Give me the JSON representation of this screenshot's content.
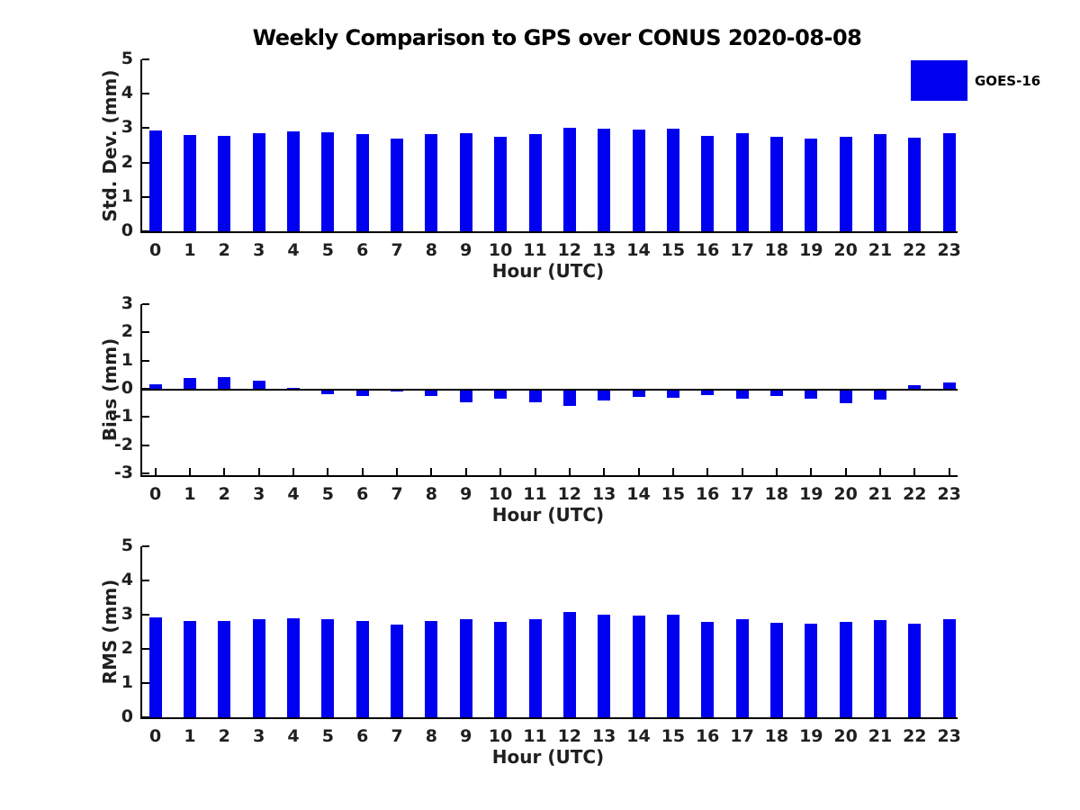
{
  "title": "Weekly Comparison to GPS over CONUS 2020-08-08",
  "legend": {
    "label": "GOES-16",
    "swatch_color": "#0000f0",
    "position": "top-right"
  },
  "colors": {
    "bar": "#0000f0",
    "axis": "#000000",
    "text": "#1f1f1f",
    "background": "#ffffff"
  },
  "chart_data": [
    {
      "type": "bar",
      "name": "std-dev",
      "ylabel": "Std. Dev. (mm)",
      "xlabel": "Hour (UTC)",
      "categories": [
        0,
        1,
        2,
        3,
        4,
        5,
        6,
        7,
        8,
        9,
        10,
        11,
        12,
        13,
        14,
        15,
        16,
        17,
        18,
        19,
        20,
        21,
        22,
        23
      ],
      "series": [
        {
          "name": "GOES-16",
          "values": [
            2.93,
            2.81,
            2.78,
            2.86,
            2.9,
            2.88,
            2.82,
            2.71,
            2.82,
            2.85,
            2.76,
            2.84,
            3.02,
            2.99,
            2.97,
            2.99,
            2.78,
            2.85,
            2.76,
            2.71,
            2.74,
            2.82,
            2.73,
            2.85
          ]
        }
      ],
      "ylim": [
        0,
        5
      ],
      "yticks": [
        0,
        1,
        2,
        3,
        4,
        5
      ],
      "xlim": [
        -0.45,
        23.2
      ],
      "grid": false,
      "legend_position": "top-right"
    },
    {
      "type": "bar",
      "name": "bias",
      "ylabel": "Bias (mm)",
      "xlabel": "Hour (UTC)",
      "categories": [
        0,
        1,
        2,
        3,
        4,
        5,
        6,
        7,
        8,
        9,
        10,
        11,
        12,
        13,
        14,
        15,
        16,
        17,
        18,
        19,
        20,
        21,
        22,
        23
      ],
      "series": [
        {
          "name": "GOES-16",
          "values": [
            0.16,
            0.37,
            0.42,
            0.28,
            0.02,
            -0.13,
            -0.18,
            -0.03,
            -0.18,
            -0.42,
            -0.3,
            -0.4,
            -0.55,
            -0.35,
            -0.21,
            -0.24,
            -0.16,
            -0.3,
            -0.19,
            -0.3,
            -0.45,
            -0.33,
            0.12,
            0.21
          ]
        }
      ],
      "ylim": [
        -3,
        3
      ],
      "yticks": [
        -3,
        -2,
        -1,
        0,
        1,
        2,
        3
      ],
      "xlim": [
        -0.45,
        23.2
      ],
      "zero_line": true,
      "grid": false
    },
    {
      "type": "bar",
      "name": "rms",
      "ylabel": "RMS (mm)",
      "xlabel": "Hour (UTC)",
      "categories": [
        0,
        1,
        2,
        3,
        4,
        5,
        6,
        7,
        8,
        9,
        10,
        11,
        12,
        13,
        14,
        15,
        16,
        17,
        18,
        19,
        20,
        21,
        22,
        23
      ],
      "series": [
        {
          "name": "GOES-16",
          "values": [
            2.93,
            2.83,
            2.81,
            2.87,
            2.9,
            2.88,
            2.83,
            2.71,
            2.83,
            2.88,
            2.78,
            2.87,
            3.07,
            3.01,
            2.98,
            3.0,
            2.78,
            2.87,
            2.77,
            2.73,
            2.78,
            2.84,
            2.73,
            2.86
          ]
        }
      ],
      "ylim": [
        0,
        5
      ],
      "yticks": [
        0,
        1,
        2,
        3,
        4,
        5
      ],
      "xlim": [
        -0.45,
        23.2
      ],
      "grid": false
    }
  ]
}
